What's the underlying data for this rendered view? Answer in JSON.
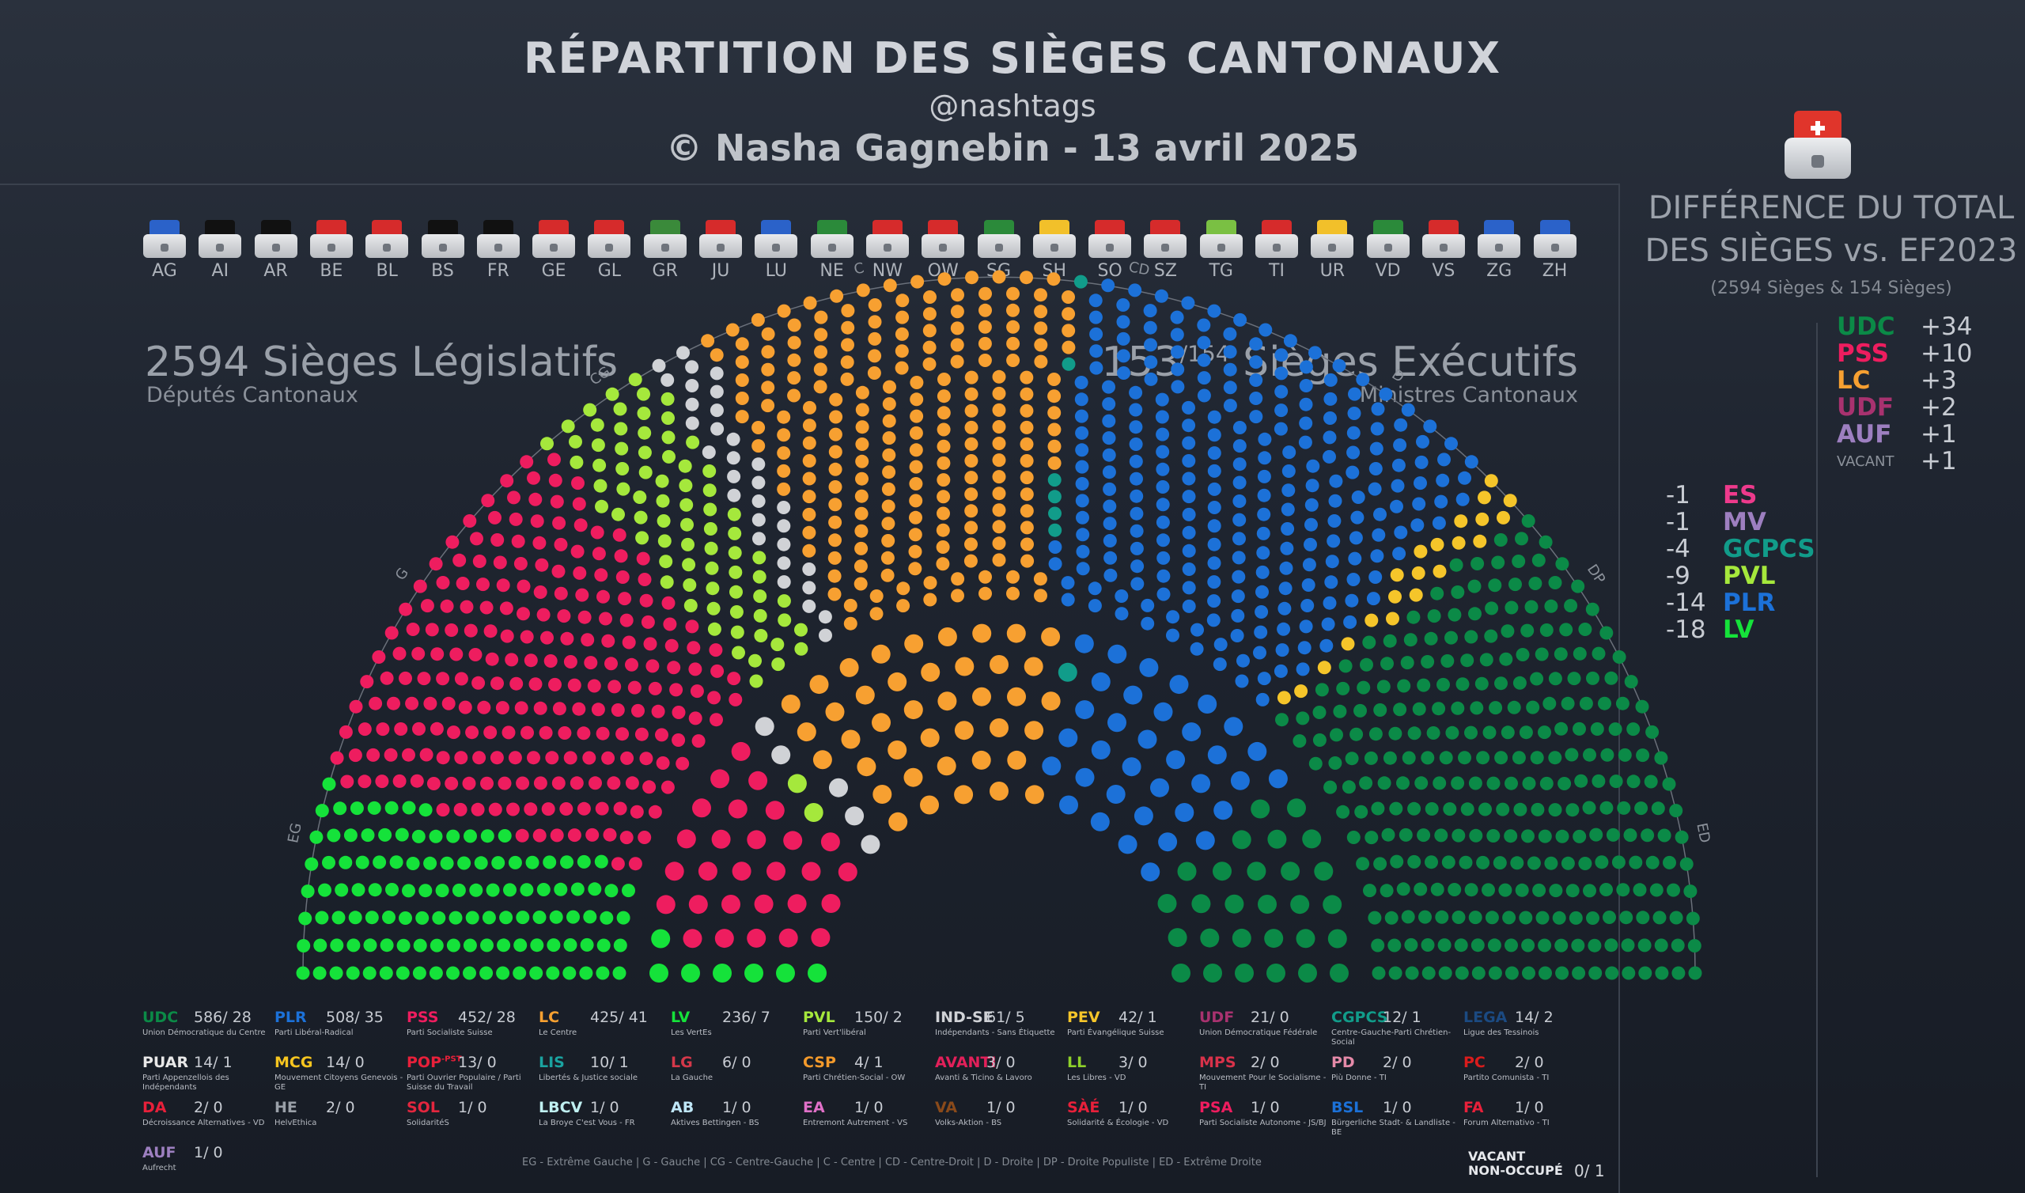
{
  "header": {
    "title": "RÉPARTITION DES SIÈGES CANTONAUX",
    "handle": "@nashtags",
    "author": "© Nasha Gagnebin - 13 avril 2025"
  },
  "cantons": [
    "AG",
    "AI",
    "AR",
    "BE",
    "BL",
    "BS",
    "FR",
    "GE",
    "GL",
    "GR",
    "JU",
    "LU",
    "NE",
    "NW",
    "OW",
    "SG",
    "SH",
    "SO",
    "SZ",
    "TG",
    "TI",
    "UR",
    "VD",
    "VS",
    "ZG",
    "ZH"
  ],
  "legislative": {
    "title": "2594 Sièges Législatifs",
    "subtitle": "Députés Cantonaux"
  },
  "executive": {
    "title_main": "153",
    "title_sup": "/154",
    "title_rest": " Sièges Exécutifs",
    "subtitle": "Ministres Cantonaux"
  },
  "chart_data": {
    "type": "parliament",
    "outer_seats_total": 2594,
    "inner_seats_total": 154,
    "axis_labels": [
      "EG",
      "G",
      "CG",
      "C",
      "CD",
      "D",
      "DP",
      "ED"
    ],
    "series": [
      {
        "abbr": "UDC",
        "name": "Union Démocratique du Centre",
        "leg": 586,
        "exe": 28,
        "color": "#0b8a47"
      },
      {
        "abbr": "PLR",
        "name": "Parti Libéral-Radical",
        "leg": 508,
        "exe": 35,
        "color": "#1c71d8"
      },
      {
        "abbr": "PSS",
        "name": "Parti Socialiste Suisse",
        "leg": 452,
        "exe": 28,
        "color": "#ee1d5f"
      },
      {
        "abbr": "LC",
        "name": "Le Centre",
        "leg": 425,
        "exe": 41,
        "color": "#f7a031"
      },
      {
        "abbr": "LV",
        "name": "Les VertEs",
        "leg": 236,
        "exe": 7,
        "color": "#15e23a"
      },
      {
        "abbr": "PVL",
        "name": "Parti Vert'libéral",
        "leg": 150,
        "exe": 2,
        "color": "#a5e83c"
      },
      {
        "abbr": "IND-SE",
        "name": "Indépendants - Sans Étiquette",
        "leg": 61,
        "exe": 5,
        "color": "#d0d2d6"
      },
      {
        "abbr": "PEV",
        "name": "Parti Évangélique Suisse",
        "leg": 42,
        "exe": 1,
        "color": "#f5c52a"
      },
      {
        "abbr": "UDF",
        "name": "Union Démocratique Fédérale",
        "leg": 21,
        "exe": 0,
        "color": "#a8326f"
      },
      {
        "abbr": "CGPCS",
        "name": "Centre-Gauche-Parti Chrétien-Social",
        "leg": 12,
        "exe": 1,
        "color": "#119c8a"
      },
      {
        "abbr": "LEGA",
        "name": "Ligue des Tessinois",
        "leg": 14,
        "exe": 2,
        "color": "#1b4a82"
      },
      {
        "abbr": "PUAR",
        "name": "Parti Appenzellois des Indépendants",
        "leg": 14,
        "exe": 1,
        "color": "#e8e8e8"
      },
      {
        "abbr": "MCG",
        "name": "Mouvement Citoyens Genevois - GE",
        "leg": 14,
        "exe": 0,
        "color": "#f6c51f"
      },
      {
        "abbr": "POP",
        "name": "Parti Ouvrier Populaire / Parti Suisse du Travail",
        "leg": 13,
        "exe": 0,
        "color": "#e8203a"
      },
      {
        "abbr": "LIS",
        "name": "Libertés & Justice sociale",
        "leg": 10,
        "exe": 1,
        "color": "#1aa3a0"
      },
      {
        "abbr": "LG",
        "name": "La Gauche",
        "leg": 6,
        "exe": 0,
        "color": "#d4384a"
      },
      {
        "abbr": "CSP",
        "name": "Parti Chrétien-Social - OW",
        "leg": 4,
        "exe": 1,
        "color": "#f39a2b"
      },
      {
        "abbr": "AVANTI",
        "name": "Avanti & Ticino & Lavoro",
        "leg": 3,
        "exe": 0,
        "color": "#e2205a"
      },
      {
        "abbr": "LL",
        "name": "Les Libres - VD",
        "leg": 3,
        "exe": 0,
        "color": "#8ed12a"
      },
      {
        "abbr": "MPS",
        "name": "Mouvement Pour le Socialisme - TI",
        "leg": 2,
        "exe": 0,
        "color": "#d8324a"
      },
      {
        "abbr": "PD",
        "name": "Più Donne - TI",
        "leg": 2,
        "exe": 0,
        "color": "#e48aa8"
      },
      {
        "abbr": "PC",
        "name": "Partito Comunista - TI",
        "leg": 2,
        "exe": 0,
        "color": "#d91c1c"
      },
      {
        "abbr": "DA",
        "name": "Décroissance Alternatives - VD",
        "leg": 2,
        "exe": 0,
        "color": "#e8203a"
      },
      {
        "abbr": "HE",
        "name": "HelvEthica",
        "leg": 2,
        "exe": 0,
        "color": "#9aa0a8"
      },
      {
        "abbr": "SOL",
        "name": "SolidaritéS",
        "leg": 1,
        "exe": 0,
        "color": "#e3263e"
      },
      {
        "abbr": "LBCV",
        "name": "La Broye C'est Vous - FR",
        "leg": 1,
        "exe": 0,
        "color": "#bfeff0"
      },
      {
        "abbr": "AB",
        "name": "Aktives Bettingen - BS",
        "leg": 1,
        "exe": 0,
        "color": "#bfe6f7"
      },
      {
        "abbr": "EA",
        "name": "Entremont Autrement - VS",
        "leg": 1,
        "exe": 0,
        "color": "#e070c8"
      },
      {
        "abbr": "VA",
        "name": "Volks-Aktion - BS",
        "leg": 1,
        "exe": 0,
        "color": "#8a4a1a"
      },
      {
        "abbr": "SÀÉ",
        "name": "Solidarité & Écologie - VD",
        "leg": 1,
        "exe": 0,
        "color": "#e8203a"
      },
      {
        "abbr": "PSA",
        "name": "Parti Socialiste Autonome - JS/BJ",
        "leg": 1,
        "exe": 0,
        "color": "#ee1d5f"
      },
      {
        "abbr": "BSL",
        "name": "Bürgerliche Stadt- & Landliste - BE",
        "leg": 1,
        "exe": 0,
        "color": "#1c71d8"
      },
      {
        "abbr": "FA",
        "name": "Forum Alternativo - TI",
        "leg": 1,
        "exe": 0,
        "color": "#e8203a"
      },
      {
        "abbr": "AUF",
        "name": "Aufrecht",
        "leg": 1,
        "exe": 0,
        "color": "#9d7fc0"
      }
    ],
    "vacant": {
      "label_1": "VACANT",
      "label_2": "NON-OCCUPÉ",
      "value": "0/ 1"
    }
  },
  "legend_suffix": {
    "POP": "-PST"
  },
  "footer_note": "EG - Extrême Gauche | G - Gauche | CG - Centre-Gauche | C - Centre | CD - Centre-Droit | D - Droite | DP - Droite Populiste | ED - Extrême Droite",
  "difference": {
    "title_line1": "DIFFÉRENCE DU TOTAL",
    "title_line2": "DES SIÈGES vs. EF2023",
    "note": "(2594 Sièges & 154 Sièges)",
    "gains": [
      {
        "abbr": "UDC",
        "value": "+34",
        "color": "#0b8a47"
      },
      {
        "abbr": "PSS",
        "value": "+10",
        "color": "#ee1d5f"
      },
      {
        "abbr": "LC",
        "value": "+3",
        "color": "#f7a031"
      },
      {
        "abbr": "UDF",
        "value": "+2",
        "color": "#a8326f"
      },
      {
        "abbr": "AUF",
        "value": "+1",
        "color": "#9d7fc0"
      },
      {
        "abbr": "VACANT",
        "value": "+1",
        "color": "#8b919a"
      }
    ],
    "losses": [
      {
        "abbr": "ES",
        "value": "-1",
        "color": "#ee3a8c"
      },
      {
        "abbr": "MV",
        "value": "-1",
        "color": "#9d7fc0"
      },
      {
        "abbr": "GCPCS",
        "value": "-4",
        "color": "#119c8a"
      },
      {
        "abbr": "PVL",
        "value": "-9",
        "color": "#a5e83c"
      },
      {
        "abbr": "PLR",
        "value": "-14",
        "color": "#1c71d8"
      },
      {
        "abbr": "LV",
        "value": "-18",
        "color": "#15e23a"
      }
    ]
  }
}
